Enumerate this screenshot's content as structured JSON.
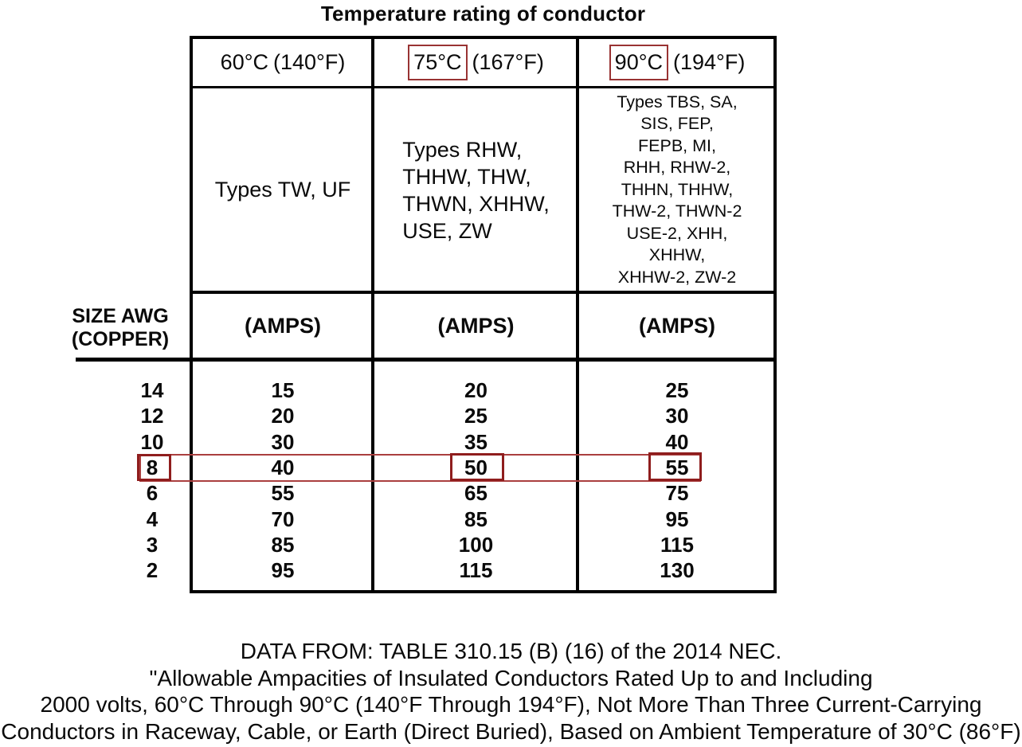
{
  "title": "Temperature rating of conductor",
  "colors": {
    "header_box_red": "#993333",
    "value_box_red": "#8f1d1d",
    "row_highlight_red": "#aa3f3f",
    "grid_black": "#000000"
  },
  "row_header_label": "SIZE AWG\n(COPPER)",
  "columns": [
    {
      "temp": "60°C",
      "fahrenheit": "(140°F)",
      "types": "Types TW, UF",
      "amps_label": "(AMPS)"
    },
    {
      "temp": "75°C",
      "fahrenheit": "(167°F)",
      "types": "Types RHW,\nTHHW, THW,\nTHWN, XHHW,\nUSE, ZW",
      "amps_label": "(AMPS)"
    },
    {
      "temp": "90°C",
      "fahrenheit": "(194°F)",
      "types": "Types TBS, SA,\nSIS, FEP,\nFEPB, MI,\nRHH, RHW-2,\nTHHN, THHW,\nTHW-2, THWN-2\nUSE-2, XHH,\nXHHW,\nXHHW-2, ZW-2",
      "amps_label": "(AMPS)"
    }
  ],
  "rows": [
    {
      "size": "14",
      "amps_60": "15",
      "amps_75": "20",
      "amps_90": "25"
    },
    {
      "size": "12",
      "amps_60": "20",
      "amps_75": "25",
      "amps_90": "30"
    },
    {
      "size": "10",
      "amps_60": "30",
      "amps_75": "35",
      "amps_90": "40"
    },
    {
      "size": "8",
      "amps_60": "40",
      "amps_75": "50",
      "amps_90": "55",
      "highlighted": true
    },
    {
      "size": "6",
      "amps_60": "55",
      "amps_75": "65",
      "amps_90": "75"
    },
    {
      "size": "4",
      "amps_60": "70",
      "amps_75": "85",
      "amps_90": "95"
    },
    {
      "size": "3",
      "amps_60": "85",
      "amps_75": "100",
      "amps_90": "115"
    },
    {
      "size": "2",
      "amps_60": "95",
      "amps_75": "115",
      "amps_90": "130"
    }
  ],
  "caption": {
    "line1": "DATA FROM: TABLE 310.15 (B) (16) of the 2014 NEC.",
    "line2": "\"Allowable Ampacities of Insulated Conductors Rated Up to and Including",
    "line3": "2000 volts, 60°C Through 90°C (140°F Through 194°F), Not More Than Three Current-Carrying",
    "line4": "Conductors in Raceway, Cable, or Earth (Direct Buried), Based on Ambient Temperature of 30°C (86°F)"
  }
}
